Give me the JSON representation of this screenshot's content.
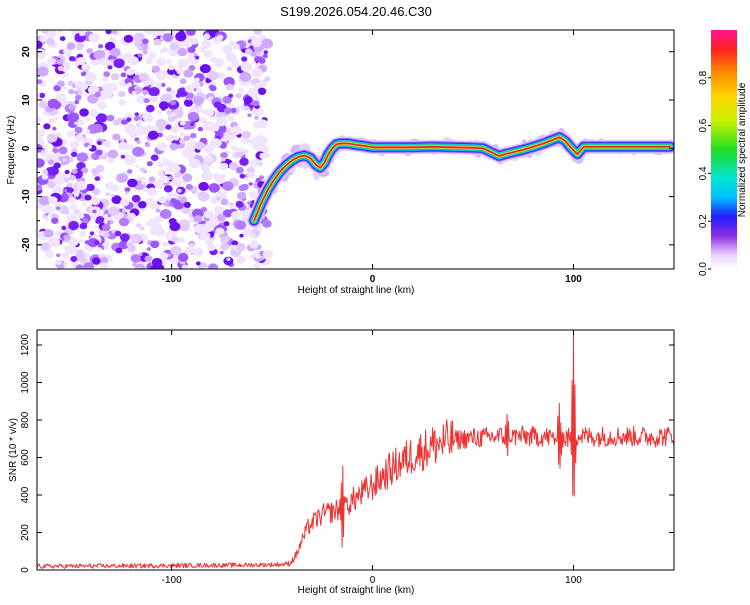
{
  "title": "S199.2026.054.20.46.C30",
  "chart_data": [
    {
      "type": "heatmap",
      "xlabel": "Height of straight line (km)",
      "ylabel": "Frequency (Hz)",
      "xlim": [
        -167,
        150
      ],
      "ylim": [
        -25,
        24.5
      ],
      "xticks": [
        -100,
        0,
        100
      ],
      "yticks": [
        20,
        10,
        0,
        -10,
        -20
      ],
      "ridge_x": [
        -59,
        -57,
        -55,
        -52,
        -49,
        -46,
        -43,
        -40,
        -37,
        -34,
        -31,
        -28,
        -26,
        -24,
        -22,
        -20,
        -18,
        -16,
        -14,
        -12,
        -8,
        -4,
        0,
        10,
        20,
        30,
        40,
        50,
        55,
        60,
        63,
        66,
        70,
        75,
        80,
        85,
        90,
        93,
        96,
        99,
        102,
        105,
        108,
        120,
        140,
        148
      ],
      "ridge_y": [
        -15,
        -13,
        -11,
        -8.5,
        -6.5,
        -4.8,
        -3.5,
        -2.5,
        -1.8,
        -1.5,
        -2,
        -3.5,
        -4,
        -3,
        -1.2,
        0,
        0.8,
        1,
        1,
        1,
        0.7,
        0.5,
        0.2,
        0.2,
        0.2,
        0.3,
        0.2,
        0.1,
        0,
        -1,
        -1.6,
        -1.2,
        -0.8,
        -0.3,
        0.3,
        1,
        1.8,
        2.3,
        1.5,
        0,
        -1.2,
        0.3,
        0.3,
        0.3,
        0.3,
        0.3
      ],
      "colorbar": {
        "label": "Normalized spectral amplitude",
        "range": [
          0,
          1
        ],
        "ticks": [
          "0.0",
          "0.2",
          "0.4",
          "0.6",
          "0.8"
        ]
      }
    },
    {
      "type": "line",
      "xlabel": "Height of straight line (km)",
      "ylabel": "SNR (10 * v/v)",
      "xlim": [
        -167,
        150
      ],
      "ylim": [
        0,
        1280
      ],
      "xticks": [
        -100,
        0,
        100
      ],
      "yticks": [
        0,
        200,
        400,
        600,
        800,
        1000,
        1200
      ],
      "series": [
        {
          "name": "SNR",
          "color": "#ee3333",
          "x": [
            -167,
            -120,
            -80,
            -50,
            -45,
            -41,
            -38,
            -35,
            -32,
            -28,
            -24,
            -20,
            -15,
            -10,
            -5,
            0,
            5,
            10,
            15,
            20,
            25,
            30,
            35,
            40,
            45,
            50,
            55,
            60,
            65,
            70,
            75,
            80,
            85,
            90,
            95,
            100,
            105,
            110,
            120,
            130,
            140,
            150
          ],
          "values": [
            20,
            22,
            25,
            28,
            30,
            35,
            80,
            160,
            230,
            270,
            300,
            310,
            330,
            370,
            410,
            450,
            500,
            545,
            580,
            615,
            640,
            665,
            680,
            690,
            700,
            705,
            705,
            710,
            715,
            712,
            715,
            710,
            712,
            705,
            700,
            710,
            715,
            710,
            715,
            712,
            710,
            715
          ]
        }
      ],
      "spikes": [
        {
          "x": -15,
          "values": [
            580,
            90
          ]
        },
        {
          "x": 67,
          "values": [
            840,
            600
          ]
        },
        {
          "x": 93,
          "values": [
            900,
            500
          ]
        },
        {
          "x": 100,
          "values": [
            1280,
            300
          ]
        }
      ]
    }
  ]
}
